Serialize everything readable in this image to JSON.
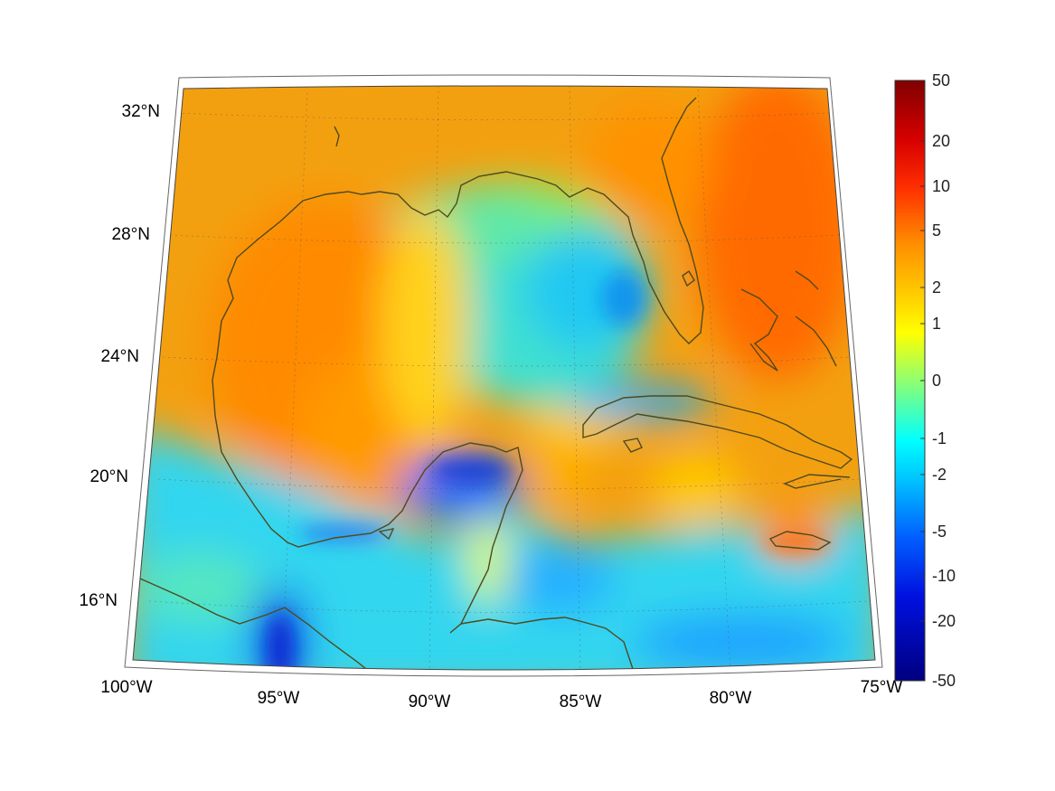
{
  "map": {
    "projection": "conic",
    "region": "Gulf of Mexico and Caribbean",
    "lon_labels": [
      "100°W",
      "95°W",
      "90°W",
      "85°W",
      "80°W",
      "75°W"
    ],
    "lat_labels": [
      "16°N",
      "20°N",
      "24°N",
      "28°N",
      "32°N"
    ],
    "coastline_color": "#4f4a1e",
    "grid": "dotted"
  },
  "colorbar": {
    "colormap": "jet",
    "ticks": [
      "50",
      "20",
      "10",
      "5",
      "2",
      "1",
      "0",
      "-1",
      "-2",
      "-5",
      "-10",
      "-20",
      "-50"
    ]
  }
}
